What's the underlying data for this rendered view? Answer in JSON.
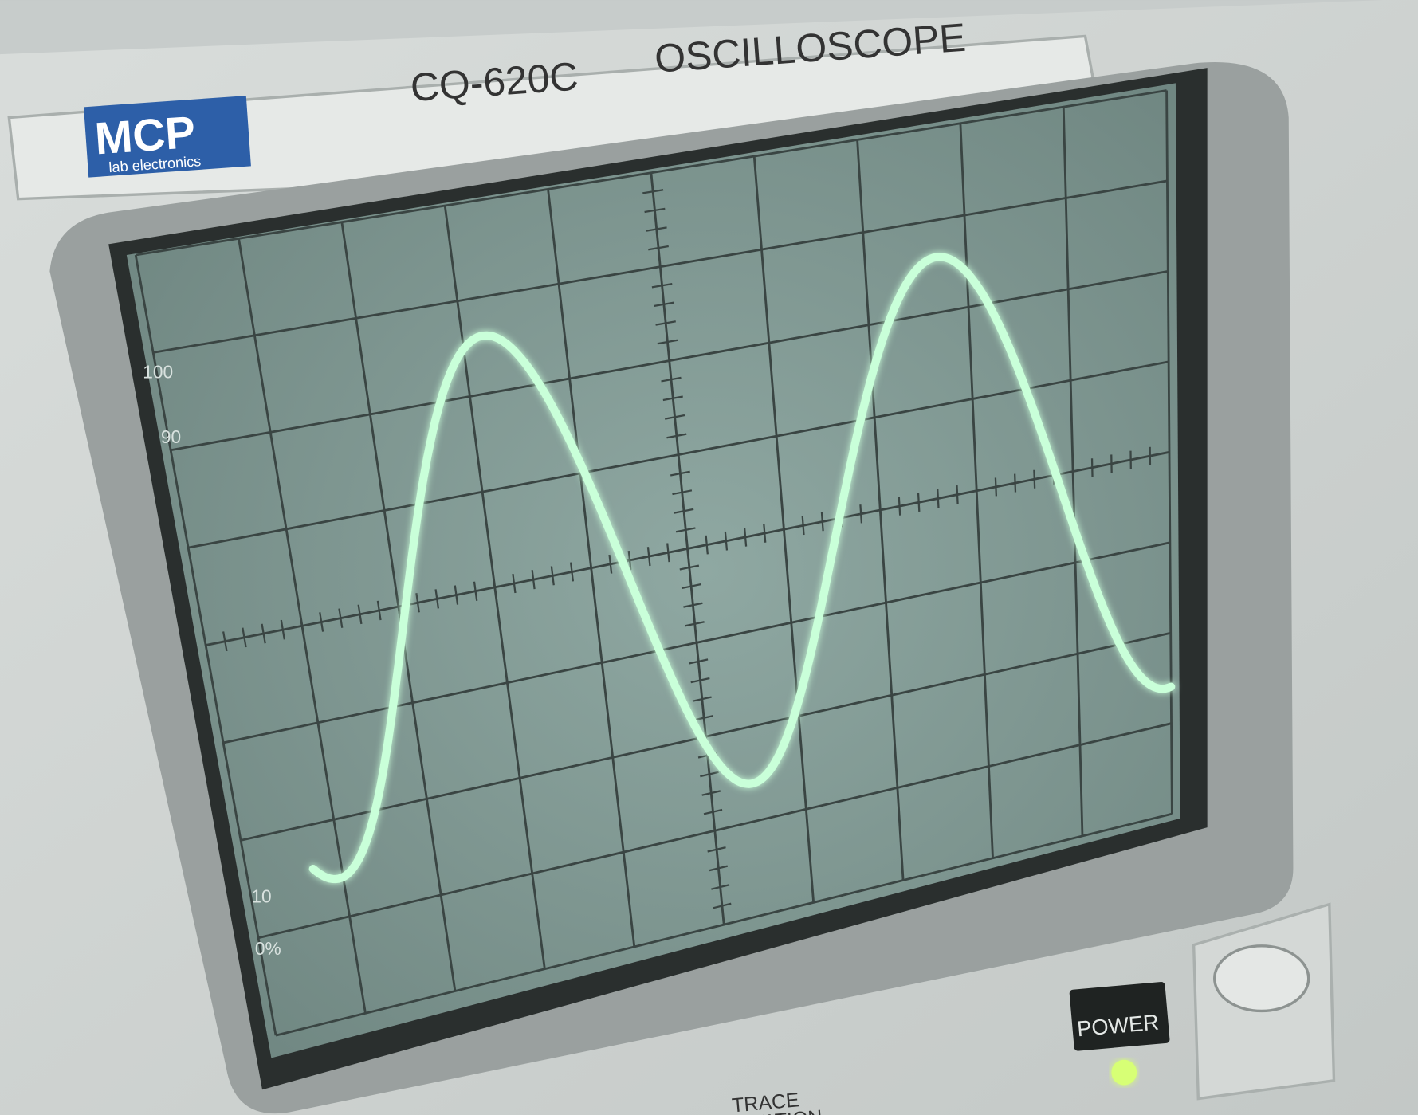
{
  "header": {
    "brand": "MCP",
    "brand_sub": "lab electronics",
    "model": "CQ-620C",
    "product": "OSCILLOSCOPE"
  },
  "scale_labels": [
    "100",
    "90",
    "10",
    "0%"
  ],
  "controls": {
    "power": "POWER",
    "trace_rotation": [
      "TRACE",
      "ROTATION"
    ]
  }
}
